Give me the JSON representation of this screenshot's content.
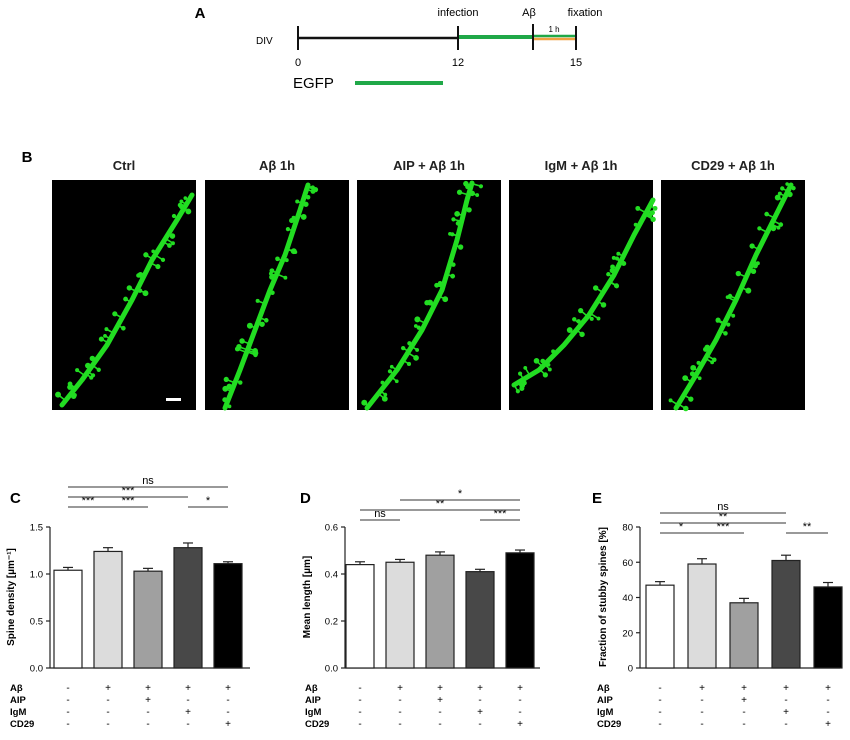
{
  "panel_a": {
    "letter": "A",
    "div_label": "DIV",
    "ticks": [
      "0",
      "12",
      "15"
    ],
    "event_labels": [
      "infection",
      "Aβ",
      "fixation"
    ],
    "duration_label": "1 h",
    "legend_label": "EGFP",
    "colors": {
      "timeline": "#111111",
      "egfp": "#20a848",
      "abeta": "#f0a040"
    }
  },
  "panel_b": {
    "letter": "B",
    "titles": [
      "Ctrl",
      "Aβ 1h",
      "AIP + Aβ 1h",
      "IgM + Aβ 1h",
      "CD29 + Aβ 1h"
    ],
    "colors": {
      "background": "#000000",
      "dendrite": "#22dd22"
    }
  },
  "treatment_table": {
    "rows": [
      {
        "label": "Aβ",
        "signs": [
          "-",
          "+",
          "+",
          "+",
          "+"
        ]
      },
      {
        "label": "AIP",
        "signs": [
          "-",
          "-",
          "+",
          "-",
          "-"
        ]
      },
      {
        "label": "IgM",
        "signs": [
          "-",
          "-",
          "-",
          "+",
          "-"
        ]
      },
      {
        "label": "CD29",
        "signs": [
          "-",
          "-",
          "-",
          "-",
          "+"
        ]
      }
    ]
  },
  "bar_colors": [
    "#ffffff",
    "#dcdcdc",
    "#a0a0a0",
    "#484848",
    "#000000"
  ],
  "chart_data": [
    {
      "panel": "C",
      "type": "bar",
      "ylabel": "Spine density [µm⁻¹]",
      "ylim": [
        0,
        1.5
      ],
      "yticks": [
        "0.0",
        "0.5",
        "1.0",
        "1.5"
      ],
      "ytick_values": [
        0,
        0.5,
        1.0,
        1.5
      ],
      "values": [
        1.04,
        1.24,
        1.03,
        1.28,
        1.11
      ],
      "errors": [
        0.03,
        0.04,
        0.03,
        0.05,
        0.02
      ],
      "significance": [
        {
          "from": 0,
          "to": 1,
          "label": "***",
          "level": 0
        },
        {
          "from": 1,
          "to": 2,
          "label": "***",
          "level": 0
        },
        {
          "from": 0,
          "to": 3,
          "label": "***",
          "level": 1
        },
        {
          "from": 0,
          "to": 4,
          "label": "ns",
          "level": 2
        },
        {
          "from": 3,
          "to": 4,
          "label": "*",
          "level": 0
        }
      ]
    },
    {
      "panel": "D",
      "type": "bar",
      "ylabel": "Mean length [µm]",
      "ylim": [
        0,
        0.6
      ],
      "yticks": [
        "0.0",
        "0.2",
        "0.4",
        "0.6"
      ],
      "ytick_values": [
        0,
        0.2,
        0.4,
        0.6
      ],
      "values": [
        0.44,
        0.45,
        0.48,
        0.41,
        0.49
      ],
      "errors": [
        0.012,
        0.012,
        0.014,
        0.01,
        0.012
      ],
      "significance": [
        {
          "from": 0,
          "to": 1,
          "label": "ns",
          "level": 0
        },
        {
          "from": 3,
          "to": 4,
          "label": "***",
          "level": 0
        },
        {
          "from": 0,
          "to": 4,
          "label": "**",
          "level": 1
        },
        {
          "from": 1,
          "to": 4,
          "label": "*",
          "level": 2
        }
      ]
    },
    {
      "panel": "E",
      "type": "bar",
      "ylabel": "Fraction of stubby spines [%]",
      "ylim": [
        0,
        80
      ],
      "yticks": [
        "0",
        "20",
        "40",
        "60",
        "80"
      ],
      "ytick_values": [
        0,
        20,
        40,
        60,
        80
      ],
      "values": [
        47,
        59,
        37,
        61,
        46
      ],
      "errors": [
        2,
        3,
        2.5,
        3,
        2.5
      ],
      "significance": [
        {
          "from": 0,
          "to": 1,
          "label": "*",
          "level": 0
        },
        {
          "from": 1,
          "to": 2,
          "label": "***",
          "level": 0
        },
        {
          "from": 0,
          "to": 3,
          "label": "**",
          "level": 1
        },
        {
          "from": 0,
          "to": 3,
          "label": "ns",
          "level": 2
        },
        {
          "from": 3,
          "to": 4,
          "label": "**",
          "level": 0
        }
      ]
    }
  ]
}
